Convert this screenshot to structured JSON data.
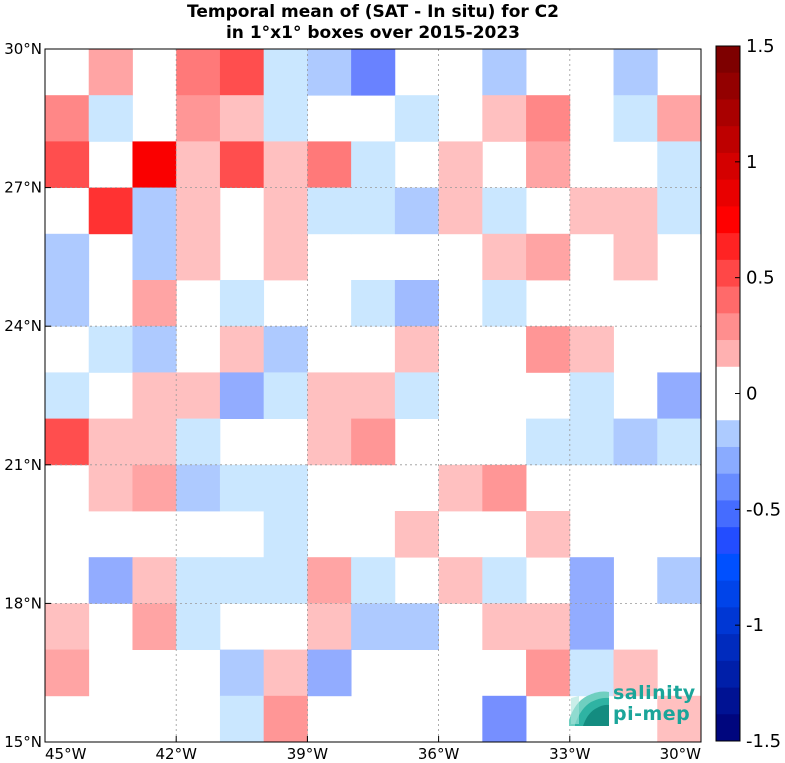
{
  "chart_data": {
    "type": "heatmap",
    "title": "Temporal mean of (SAT - In situ) for C2",
    "subtitle": "in 1°x1° boxes over 2015-2023",
    "x_ticks": [
      "45°W",
      "42°W",
      "39°W",
      "36°W",
      "33°W",
      "30°W"
    ],
    "y_ticks": [
      "30°N",
      "27°N",
      "24°N",
      "21°N",
      "18°N",
      "15°N"
    ],
    "xlim": [
      -45,
      -30
    ],
    "ylim": [
      15,
      30
    ],
    "colorbar": {
      "ticks": [
        "1.5",
        "1",
        "0.5",
        "0",
        "-0.5",
        "-1",
        "-1.5"
      ],
      "range": [
        -1.5,
        1.5
      ],
      "levels": 26
    },
    "grid": true,
    "cell_rows_north_to_south": [
      [
        0,
        0.25,
        0,
        0.4,
        0.55,
        -0.1,
        -0.2,
        -0.45,
        0,
        0,
        -0.2,
        0,
        0,
        -0.2,
        0
      ],
      [
        0.35,
        -0.1,
        0,
        0.3,
        0.15,
        -0.1,
        0,
        0,
        -0.1,
        0,
        0.15,
        0.35,
        0,
        -0.1,
        0.25
      ],
      [
        0.55,
        0,
        0.85,
        0.15,
        0.55,
        0.15,
        0.4,
        -0.1,
        0,
        0.15,
        0,
        0.25,
        0,
        0,
        -0.1
      ],
      [
        0,
        0.65,
        -0.2,
        0.15,
        0,
        0.15,
        -0.1,
        -0.1,
        -0.2,
        0.15,
        -0.1,
        0,
        0.15,
        0.15,
        -0.1
      ],
      [
        -0.2,
        0,
        -0.2,
        0.15,
        0,
        0.15,
        0,
        0,
        0,
        0,
        0.15,
        0.25,
        0,
        0.15,
        0
      ],
      [
        -0.2,
        0,
        0.25,
        0,
        -0.1,
        0,
        0,
        -0.1,
        -0.25,
        0,
        -0.1,
        0,
        0,
        0,
        0
      ],
      [
        0,
        -0.1,
        -0.2,
        0,
        0.15,
        -0.2,
        0,
        0,
        0.15,
        0,
        0,
        0.3,
        0.15,
        0,
        0
      ],
      [
        -0.1,
        0,
        0.15,
        0.15,
        -0.3,
        -0.1,
        0.15,
        0.15,
        -0.1,
        0,
        0,
        0,
        -0.1,
        0,
        -0.3
      ],
      [
        0.55,
        0.15,
        0.15,
        -0.1,
        0,
        0,
        0.15,
        0.3,
        0,
        0,
        0,
        -0.1,
        -0.1,
        -0.2,
        -0.1
      ],
      [
        0,
        0.15,
        0.25,
        -0.2,
        -0.1,
        -0.1,
        0,
        0,
        0,
        0.15,
        0.3,
        0,
        0,
        0,
        0
      ],
      [
        0,
        0,
        0,
        0,
        0,
        -0.1,
        0,
        0,
        0.15,
        0,
        0,
        0.15,
        0,
        0,
        0
      ],
      [
        0,
        -0.3,
        0.15,
        -0.1,
        -0.1,
        -0.1,
        0.25,
        -0.1,
        0,
        0.15,
        -0.1,
        0,
        -0.3,
        0,
        -0.2
      ],
      [
        0.15,
        0,
        0.25,
        -0.1,
        0,
        0,
        0.15,
        -0.2,
        -0.2,
        0,
        0.15,
        0.15,
        -0.3,
        0,
        0
      ],
      [
        0.25,
        0,
        0,
        0,
        -0.2,
        0.15,
        -0.3,
        0,
        0,
        0,
        0,
        0.3,
        -0.1,
        0.15,
        0
      ],
      [
        0,
        0,
        0,
        0,
        -0.1,
        0.3,
        0,
        0,
        0,
        0,
        -0.4,
        0,
        0,
        0,
        0.15
      ]
    ]
  },
  "logo": {
    "line1": "salinity",
    "line2": "pi-mep"
  }
}
